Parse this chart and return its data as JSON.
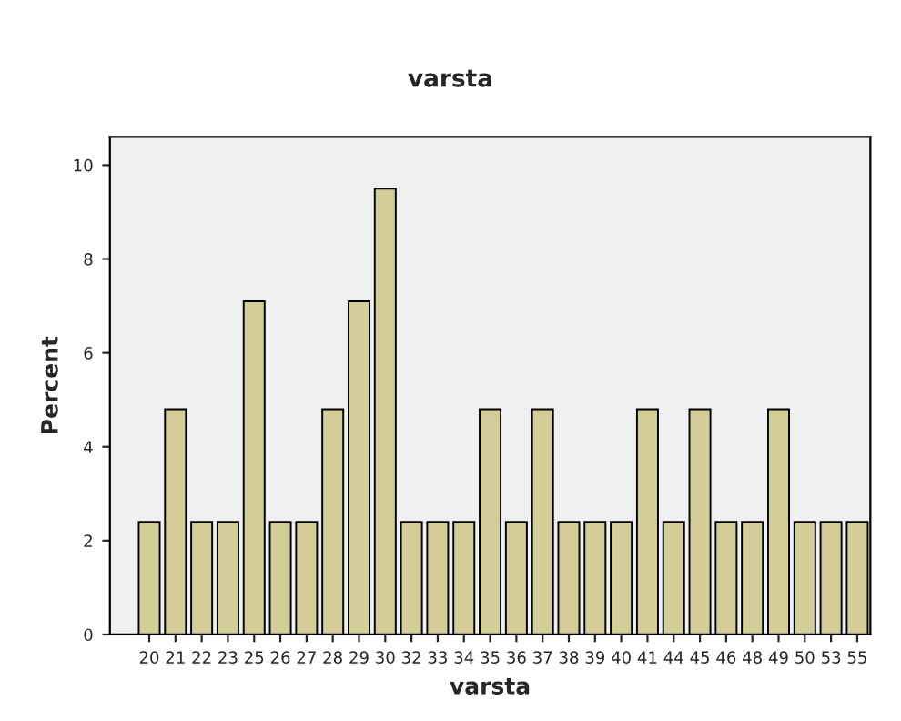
{
  "chart_data": {
    "type": "bar",
    "title": "varsta",
    "xlabel": "varsta",
    "ylabel": "Percent",
    "categories": [
      "20",
      "21",
      "22",
      "23",
      "25",
      "26",
      "27",
      "28",
      "29",
      "30",
      "32",
      "33",
      "34",
      "35",
      "36",
      "37",
      "38",
      "39",
      "40",
      "41",
      "44",
      "45",
      "46",
      "48",
      "49",
      "50",
      "53",
      "55"
    ],
    "values": [
      2.4,
      4.8,
      2.4,
      2.4,
      7.1,
      2.4,
      2.4,
      4.8,
      7.1,
      9.5,
      2.4,
      2.4,
      2.4,
      4.8,
      2.4,
      4.8,
      2.4,
      2.4,
      2.4,
      4.8,
      2.4,
      4.8,
      2.4,
      2.4,
      4.8,
      2.4,
      2.4,
      2.4
    ],
    "color": "#d3ce97",
    "ylim": [
      0,
      10.6
    ],
    "yticks": [
      0,
      2,
      4,
      6,
      8,
      10
    ],
    "grid": false
  }
}
